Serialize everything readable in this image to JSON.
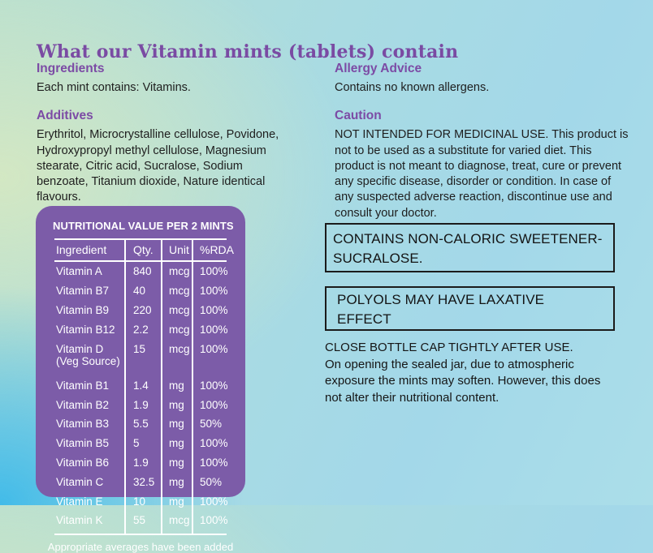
{
  "page": {
    "title": "What our Vitamin mints (tablets) contain"
  },
  "sections": {
    "ingredients": {
      "heading": "Ingredients",
      "body": "Each mint contains: Vitamins."
    },
    "additives": {
      "heading": "Additives",
      "body": "Erythritol, Microcrystalline cellulose, Povidone, Hydroxypropyl methyl cellulose, Magnesium stearate, Citric acid, Sucralose, Sodium benzoate, Titanium dioxide, Nature identical flavours."
    },
    "allergy_advice": {
      "heading": "Allergy Advice",
      "body": "Contains no known allergens."
    },
    "caution": {
      "heading": "Caution",
      "body": "NOT INTENDED FOR MEDICINAL USE. This product is not to be used as a substitute for varied diet. This product is not meant to diagnose, treat, cure or prevent any specific disease, disorder or condition. In case of any suspected adverse reaction, discontinue use and consult your doctor."
    }
  },
  "nutrition_table": {
    "title": "NUTRITIONAL VALUE PER 2 MINTS",
    "columns": [
      "Ingredient",
      "Qty.",
      "Unit",
      "%RDA"
    ],
    "rows": [
      {
        "ingredient": "Vitamin A",
        "qty": "840",
        "unit": "mcg",
        "rda": "100%"
      },
      {
        "ingredient": "Vitamin B7",
        "qty": "40",
        "unit": "mcg",
        "rda": "100%"
      },
      {
        "ingredient": "Vitamin B9",
        "qty": "220",
        "unit": "mcg",
        "rda": "100%"
      },
      {
        "ingredient": "Vitamin B12",
        "qty": "2.2",
        "unit": "mcg",
        "rda": "100%"
      },
      {
        "ingredient": "Vitamin D (Veg Source)",
        "qty": "15",
        "unit": "mcg",
        "rda": "100%"
      },
      {
        "ingredient": "Vitamin B1",
        "qty": "1.4",
        "unit": "mg",
        "rda": "100%"
      },
      {
        "ingredient": "Vitamin B2",
        "qty": "1.9",
        "unit": "mg",
        "rda": "100%"
      },
      {
        "ingredient": "Vitamin B3",
        "qty": "5.5",
        "unit": "mg",
        "rda": "50%"
      },
      {
        "ingredient": "Vitamin B5",
        "qty": "5",
        "unit": "mg",
        "rda": "100%"
      },
      {
        "ingredient": "Vitamin B6",
        "qty": "1.9",
        "unit": "mg",
        "rda": "100%"
      },
      {
        "ingredient": "Vitamin C",
        "qty": "32.5",
        "unit": "mg",
        "rda": "50%"
      },
      {
        "ingredient": "Vitamin E",
        "qty": "10",
        "unit": "mg",
        "rda": "100%"
      },
      {
        "ingredient": "Vitamin K",
        "qty": "55",
        "unit": "mcg",
        "rda": "100%"
      }
    ],
    "footnote": "Appropriate averages have been added"
  },
  "warning_boxes": [
    {
      "lines": [
        "CONTAINS NON-CALORIC SWEETENER-",
        "SUCRALOSE."
      ]
    },
    {
      "lines": [
        "POLYOLS MAY HAVE LAXATIVE",
        "EFFECT"
      ]
    }
  ],
  "storage_note": {
    "heading": "CLOSE BOTTLE CAP TIGHTLY AFTER USE.",
    "body": "On opening the sealed jar, due to atmospheric exposure the mints may soften. However, this does not alter their nutritional content."
  },
  "colors": {
    "accent_purple": "#7c4ba5",
    "panel_purple": "#7c5ca8",
    "ink": "#1e1e1e",
    "table_text": "#ffffff",
    "box_border": "#1b1b1b",
    "bg_green": "#d5e8c2",
    "bg_blue_bright": "#3ebae9",
    "bg_blue_light": "#abdee9"
  }
}
